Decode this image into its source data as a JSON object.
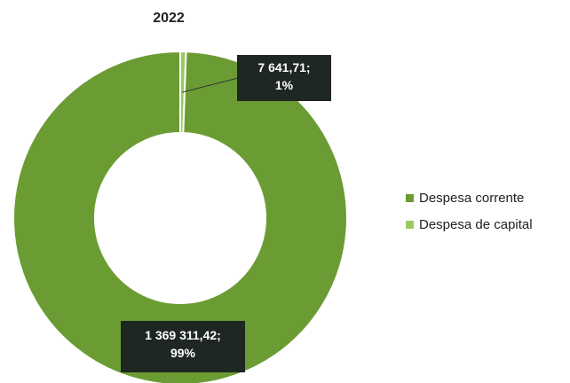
{
  "chart_data": {
    "type": "pie",
    "donut": true,
    "title": "2022",
    "legend_position": "right",
    "categories": [
      "Despesa corrente",
      "Despesa de capital"
    ],
    "values": [
      1369311.42,
      7641.71
    ],
    "value_labels": [
      "1 369 311,42;",
      "7 641,71;"
    ],
    "percent_labels": [
      "99%",
      "1%"
    ],
    "colors": [
      "#6b9c33",
      "#9cc95e"
    ]
  }
}
